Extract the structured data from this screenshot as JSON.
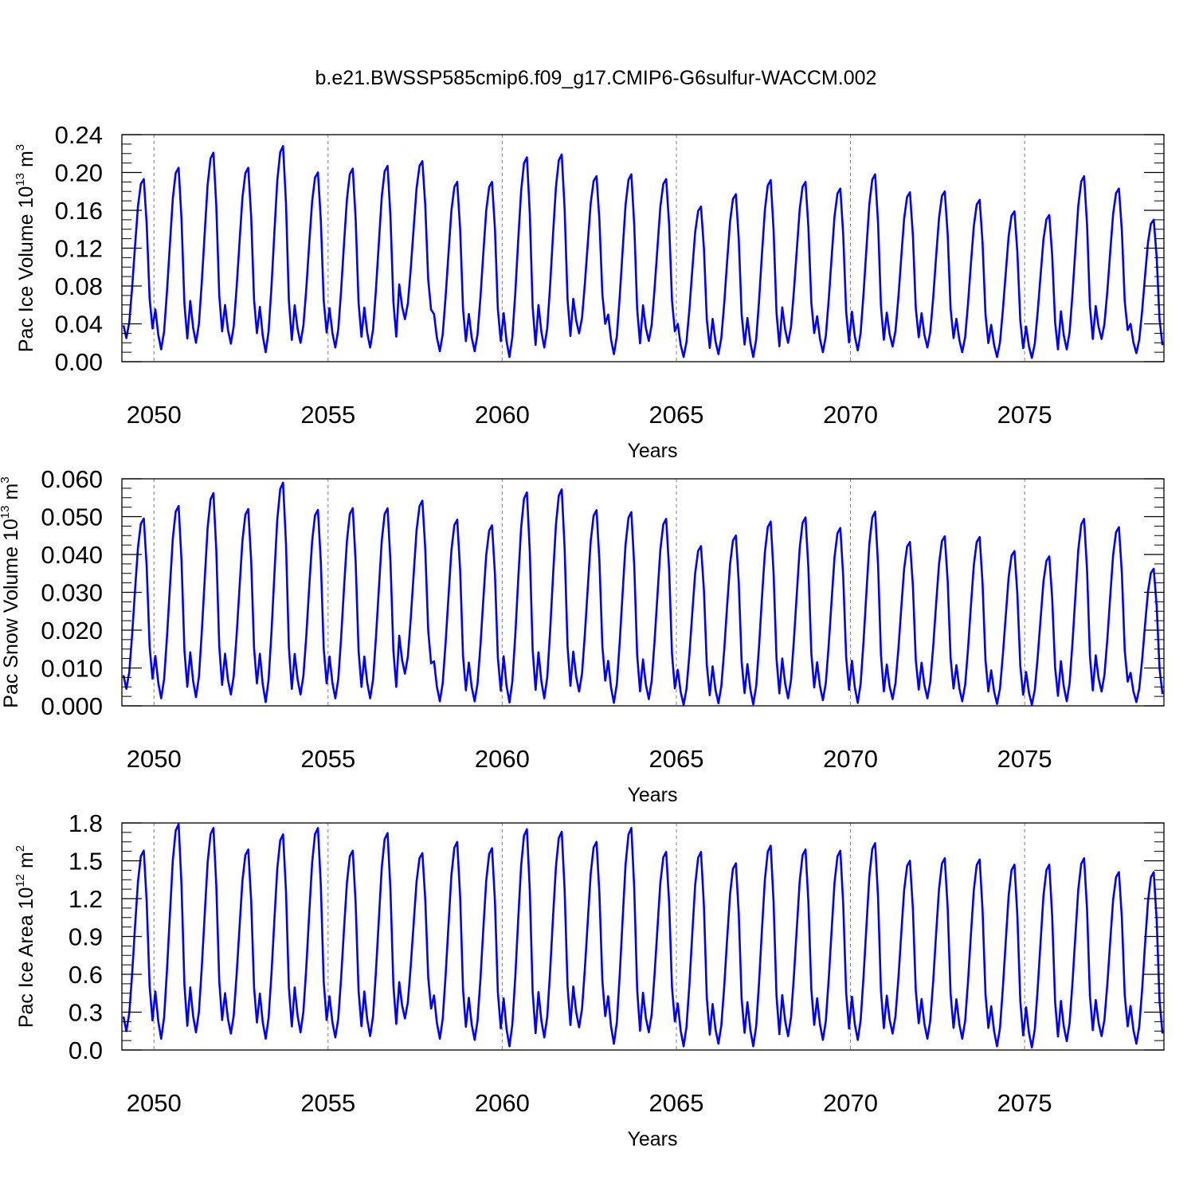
{
  "title": "b.e21.BWSSP585cmip6.f09_g17.CMIP6-G6sulfur-WACCM.002",
  "colors": {
    "line": "#0000ff",
    "axis": "#000000",
    "refline": "#808080"
  },
  "chart_data": [
    {
      "type": "line",
      "ylabel": {
        "base": "Pac Ice Volume 10",
        "exp": "13",
        "unit": " m",
        "unit_exp": "3"
      },
      "xlabel": "Years",
      "xlim": [
        2049.08,
        2079.0
      ],
      "ylim": [
        0.0,
        0.24
      ],
      "yticks": [
        "0.00",
        "0.04",
        "0.08",
        "0.12",
        "0.16",
        "0.20",
        "0.24"
      ],
      "xticks": [
        "2050",
        "2055",
        "2060",
        "2065",
        "2070",
        "2075"
      ],
      "ref_lines_x": [
        2050,
        2055,
        2060,
        2065,
        2070,
        2075
      ],
      "series": [
        {
          "peak": [
            0.193,
            0.205,
            0.221,
            0.205,
            0.228,
            0.2,
            0.204,
            0.207,
            0.212,
            0.19,
            0.19,
            0.216,
            0.219,
            0.196,
            0.198,
            0.193,
            0.164,
            0.177,
            0.192,
            0.19,
            0.183,
            0.198,
            0.179,
            0.18,
            0.171,
            0.159,
            0.155,
            0.196,
            0.183,
            0.15
          ],
          "trough": [
            0.025,
            0.013,
            0.02,
            0.019,
            0.01,
            0.02,
            0.015,
            0.015,
            0.045,
            0.011,
            0.011,
            0.005,
            0.015,
            0.03,
            0.008,
            0.022,
            0.005,
            0.008,
            0.005,
            0.02,
            0.01,
            0.012,
            0.016,
            0.015,
            0.01,
            0.005,
            0.004,
            0.013,
            0.024,
            0.009
          ]
        }
      ]
    },
    {
      "type": "line",
      "ylabel": {
        "base": "Pac Snow Volume 10",
        "exp": "13",
        "unit": " m",
        "unit_exp": "3"
      },
      "xlabel": "Years",
      "xlim": [
        2049.08,
        2079.0
      ],
      "ylim": [
        0.0,
        0.06
      ],
      "yticks": [
        "0.000",
        "0.010",
        "0.020",
        "0.030",
        "0.040",
        "0.050",
        "0.060"
      ],
      "xticks": [
        "2050",
        "2055",
        "2060",
        "2065",
        "2070",
        "2075"
      ],
      "ref_lines_x": [
        2050,
        2055,
        2060,
        2065,
        2070,
        2075
      ],
      "series": [
        {
          "peak": [
            0.0495,
            0.0528,
            0.0562,
            0.052,
            0.059,
            0.0518,
            0.0522,
            0.0522,
            0.0542,
            0.0492,
            0.0477,
            0.0564,
            0.0572,
            0.0517,
            0.0512,
            0.0494,
            0.0422,
            0.045,
            0.0487,
            0.0498,
            0.047,
            0.0513,
            0.0433,
            0.0448,
            0.0446,
            0.0409,
            0.0395,
            0.0494,
            0.0472,
            0.0362
          ],
          "trough": [
            0.0045,
            0.002,
            0.0023,
            0.003,
            0.001,
            0.003,
            0.002,
            0.002,
            0.0085,
            0.0012,
            0.0012,
            0.0009,
            0.002,
            0.0038,
            0.0008,
            0.0018,
            0.0003,
            0.0007,
            0.0004,
            0.002,
            0.0015,
            0.0008,
            0.0018,
            0.002,
            0.0012,
            0.0005,
            0.0003,
            0.0012,
            0.0038,
            0.001
          ]
        }
      ]
    },
    {
      "type": "line",
      "ylabel": {
        "base": "Pac Ice Area 10",
        "exp": "12",
        "unit": " m",
        "unit_exp": "2"
      },
      "xlabel": "Years",
      "xlim": [
        2049.08,
        2079.0
      ],
      "ylim": [
        0.0,
        1.8
      ],
      "yticks": [
        "0.0",
        "0.3",
        "0.6",
        "0.9",
        "1.2",
        "1.5",
        "1.8"
      ],
      "xticks": [
        "2050",
        "2055",
        "2060",
        "2065",
        "2070",
        "2075"
      ],
      "ref_lines_x": [
        2050,
        2055,
        2060,
        2065,
        2070,
        2075
      ],
      "series": [
        {
          "peak": [
            1.58,
            1.79,
            1.76,
            1.59,
            1.71,
            1.76,
            1.58,
            1.72,
            1.56,
            1.65,
            1.6,
            1.75,
            1.73,
            1.65,
            1.76,
            1.57,
            1.57,
            1.48,
            1.62,
            1.59,
            1.58,
            1.64,
            1.5,
            1.52,
            1.51,
            1.47,
            1.47,
            1.52,
            1.41,
            1.41
          ],
          "trough": [
            0.15,
            0.09,
            0.14,
            0.13,
            0.09,
            0.14,
            0.1,
            0.11,
            0.25,
            0.09,
            0.08,
            0.03,
            0.1,
            0.18,
            0.05,
            0.14,
            0.03,
            0.05,
            0.03,
            0.11,
            0.08,
            0.08,
            0.13,
            0.09,
            0.09,
            0.03,
            0.02,
            0.07,
            0.11,
            0.05
          ]
        }
      ]
    }
  ]
}
